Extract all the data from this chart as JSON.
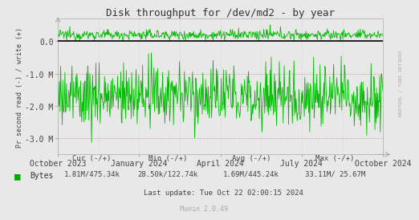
{
  "title": "Disk throughput for /dev/md2 - by year",
  "ylabel": "Pr second read (-) / write (+)",
  "background_color": "#E8E8E8",
  "plot_bg_color": "#E8E8E8",
  "grid_color": "#CCCCCC",
  "line_color": "#00BB00",
  "line_color_zero": "#000000",
  "ylim": [
    -3500000,
    700000
  ],
  "yticks": [
    -3000000,
    -2000000,
    -1000000,
    0.0
  ],
  "ytick_labels": [
    "-3.0 M",
    "-2.0 M",
    "-1.0 M",
    "0.0"
  ],
  "xtick_labels": [
    "October 2023",
    "January 2024",
    "April 2024",
    "July 2024",
    "October 2024"
  ],
  "legend_label": "Bytes",
  "legend_color": "#00AA00",
  "cur_label": "Cur (-/+)",
  "cur_value": "1.81M/475.34k",
  "min_label": "Min (-/+)",
  "min_value": "28.50k/122.74k",
  "avg_label": "Avg (-/+)",
  "avg_value": "1.69M/445.24k",
  "max_label": "Max (-/+)",
  "max_value": "33.11M/ 25.67M",
  "last_update": "Last update: Tue Oct 22 02:00:15 2024",
  "munin_version": "Munin 2.0.49",
  "rrdtool_label": "RRDTOOL / TOBI OETIKER",
  "write_avg": 200000,
  "write_noise": 80000,
  "read_avg": -1690000,
  "read_noise": 500000,
  "n_points": 600
}
